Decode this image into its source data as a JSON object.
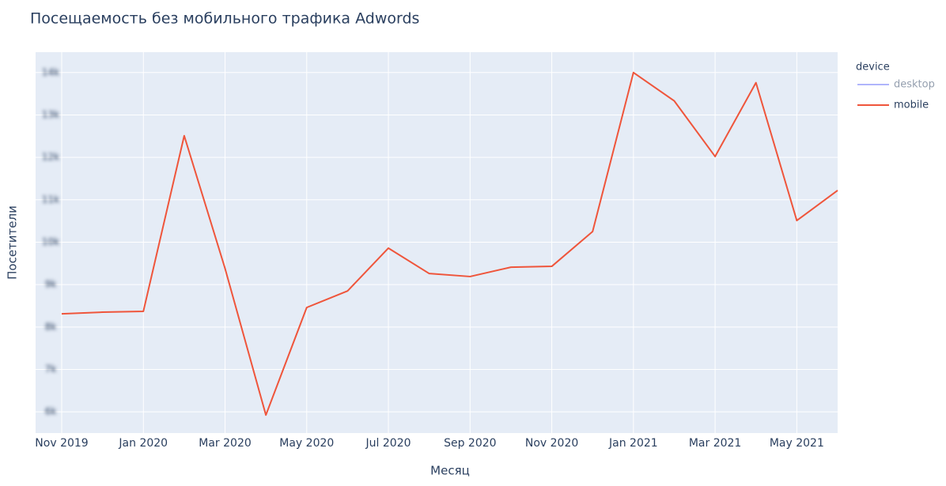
{
  "chart_data": {
    "type": "line",
    "title": "Посещаемость без мобильного трафика Adwords",
    "x_label": "Месяц",
    "y_label": "Посетители",
    "x": [
      "2019-11",
      "2019-12",
      "2020-01",
      "2020-02",
      "2020-03",
      "2020-04",
      "2020-05",
      "2020-06",
      "2020-07",
      "2020-08",
      "2020-09",
      "2020-10",
      "2020-11",
      "2020-12",
      "2021-01",
      "2021-02",
      "2021-03",
      "2021-04",
      "2021-05",
      "2021-06"
    ],
    "xlim": [
      "2019-11",
      "2021-06"
    ],
    "xticks": [
      {
        "value": "2019-11",
        "label": "Nov 2019"
      },
      {
        "value": "2020-01",
        "label": "Jan 2020"
      },
      {
        "value": "2020-03",
        "label": "Mar 2020"
      },
      {
        "value": "2020-05",
        "label": "May 2020"
      },
      {
        "value": "2020-07",
        "label": "Jul 2020"
      },
      {
        "value": "2020-09",
        "label": "Sep 2020"
      },
      {
        "value": "2020-11",
        "label": "Nov 2020"
      },
      {
        "value": "2021-01",
        "label": "Jan 2021"
      },
      {
        "value": "2021-03",
        "label": "Mar 2021"
      },
      {
        "value": "2021-05",
        "label": "May 2021"
      }
    ],
    "ylim": [
      5500,
      14480
    ],
    "yticks": [
      {
        "value": 6000,
        "label": "6k"
      },
      {
        "value": 7000,
        "label": "7k"
      },
      {
        "value": 8000,
        "label": "8k"
      },
      {
        "value": 9000,
        "label": "9k"
      },
      {
        "value": 10000,
        "label": "10k"
      },
      {
        "value": 11000,
        "label": "11k"
      },
      {
        "value": 12000,
        "label": "12k"
      },
      {
        "value": 13000,
        "label": "13k"
      },
      {
        "value": 14000,
        "label": "14k"
      }
    ],
    "grid": true,
    "legend_title": "device",
    "legend": "top-right",
    "series": [
      {
        "name": "desktop",
        "color": "#636efa",
        "visible": false,
        "values": [
          null,
          null,
          null,
          null,
          null,
          null,
          null,
          null,
          null,
          null,
          null,
          null,
          null,
          null,
          null,
          null,
          null,
          null,
          null,
          null
        ]
      },
      {
        "name": "mobile",
        "color": "#ef553b",
        "visible": true,
        "values": [
          8310,
          8350,
          8370,
          12510,
          9380,
          5925,
          8460,
          8850,
          9860,
          9260,
          9190,
          9410,
          9430,
          10250,
          14000,
          13330,
          12020,
          13760,
          10510,
          11220
        ]
      }
    ]
  }
}
